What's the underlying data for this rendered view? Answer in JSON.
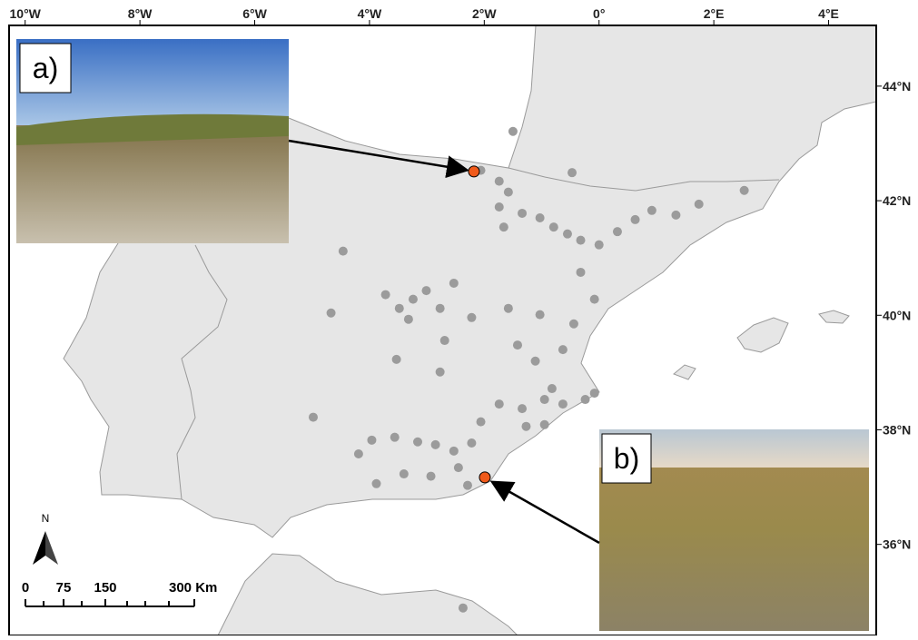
{
  "chart_data": {
    "type": "map",
    "xlim": [
      -10.28,
      4.83
    ],
    "ylim": [
      34.41,
      45.06
    ],
    "xticks": [
      {
        "value": -10,
        "label": "10°W"
      },
      {
        "value": -8,
        "label": "8°W"
      },
      {
        "value": -6,
        "label": "6°W"
      },
      {
        "value": -4,
        "label": "4°W"
      },
      {
        "value": -2,
        "label": "2°W"
      },
      {
        "value": 0,
        "label": "0°"
      },
      {
        "value": 2,
        "label": "2°E"
      },
      {
        "value": 4,
        "label": "4°E"
      }
    ],
    "yticks": [
      {
        "value": 44,
        "label": "44°N"
      },
      {
        "value": 42,
        "label": "42°N"
      },
      {
        "value": 40,
        "label": "40°N"
      },
      {
        "value": 38,
        "label": "38°N"
      },
      {
        "value": 36,
        "label": "36°N"
      }
    ],
    "points": {
      "color": "#9b9b9b",
      "lon": [
        -2.06,
        -1.74,
        -1.58,
        -1.74,
        -1.66,
        -1.34,
        -1.03,
        -0.79,
        -0.55,
        -0.32,
        0,
        0.32,
        0.63,
        0.92,
        1.34,
        1.74,
        2.53,
        -0.47,
        -1.5,
        -0.32,
        -0.08,
        -3.72,
        -3.48,
        -3.24,
        -3.01,
        -3.32,
        -2.77,
        -2.53,
        -2.22,
        -1.58,
        -1.03,
        -0.44,
        -4.46,
        -4.67,
        -3.53,
        -2.69,
        -2.77,
        -1.42,
        -1.11,
        -0.63,
        -1.74,
        -1.34,
        -0.95,
        -0.63,
        -0.24,
        -0.08,
        -0.95,
        -1.27,
        -2.06,
        -0.82,
        -3.96,
        -3.56,
        -3.16,
        -2.85,
        -2.53,
        -2.22,
        -3.88,
        -3.4,
        -2.93,
        -2.45,
        -2.29,
        -4.98,
        -4.19,
        -2.37
      ],
      "lat": [
        42.53,
        42.34,
        42.15,
        41.89,
        41.54,
        41.78,
        41.7,
        41.54,
        41.42,
        41.31,
        41.23,
        41.46,
        41.67,
        41.83,
        41.75,
        41.94,
        42.18,
        42.49,
        43.21,
        40.75,
        40.28,
        40.36,
        40.12,
        40.28,
        40.43,
        39.93,
        40.12,
        40.56,
        39.96,
        40.12,
        40.01,
        39.85,
        41.12,
        40.04,
        39.23,
        39.56,
        39.01,
        39.48,
        39.2,
        39.4,
        38.45,
        38.37,
        38.53,
        38.45,
        38.53,
        38.64,
        38.09,
        38.06,
        38.14,
        38.72,
        37.82,
        37.87,
        37.79,
        37.74,
        37.63,
        37.77,
        37.06,
        37.23,
        37.19,
        37.34,
        37.03,
        38.22,
        37.58,
        34.89
      ]
    },
    "sites": [
      {
        "label": "a)",
        "lon": -2.18,
        "lat": 42.51,
        "color": "#f05a1a"
      },
      {
        "label": "b)",
        "lon": -1.99,
        "lat": 37.17,
        "color": "#f05a1a"
      }
    ],
    "north_label": "N",
    "scale_labels": [
      "0",
      "75",
      "150",
      "300 Km"
    ]
  }
}
